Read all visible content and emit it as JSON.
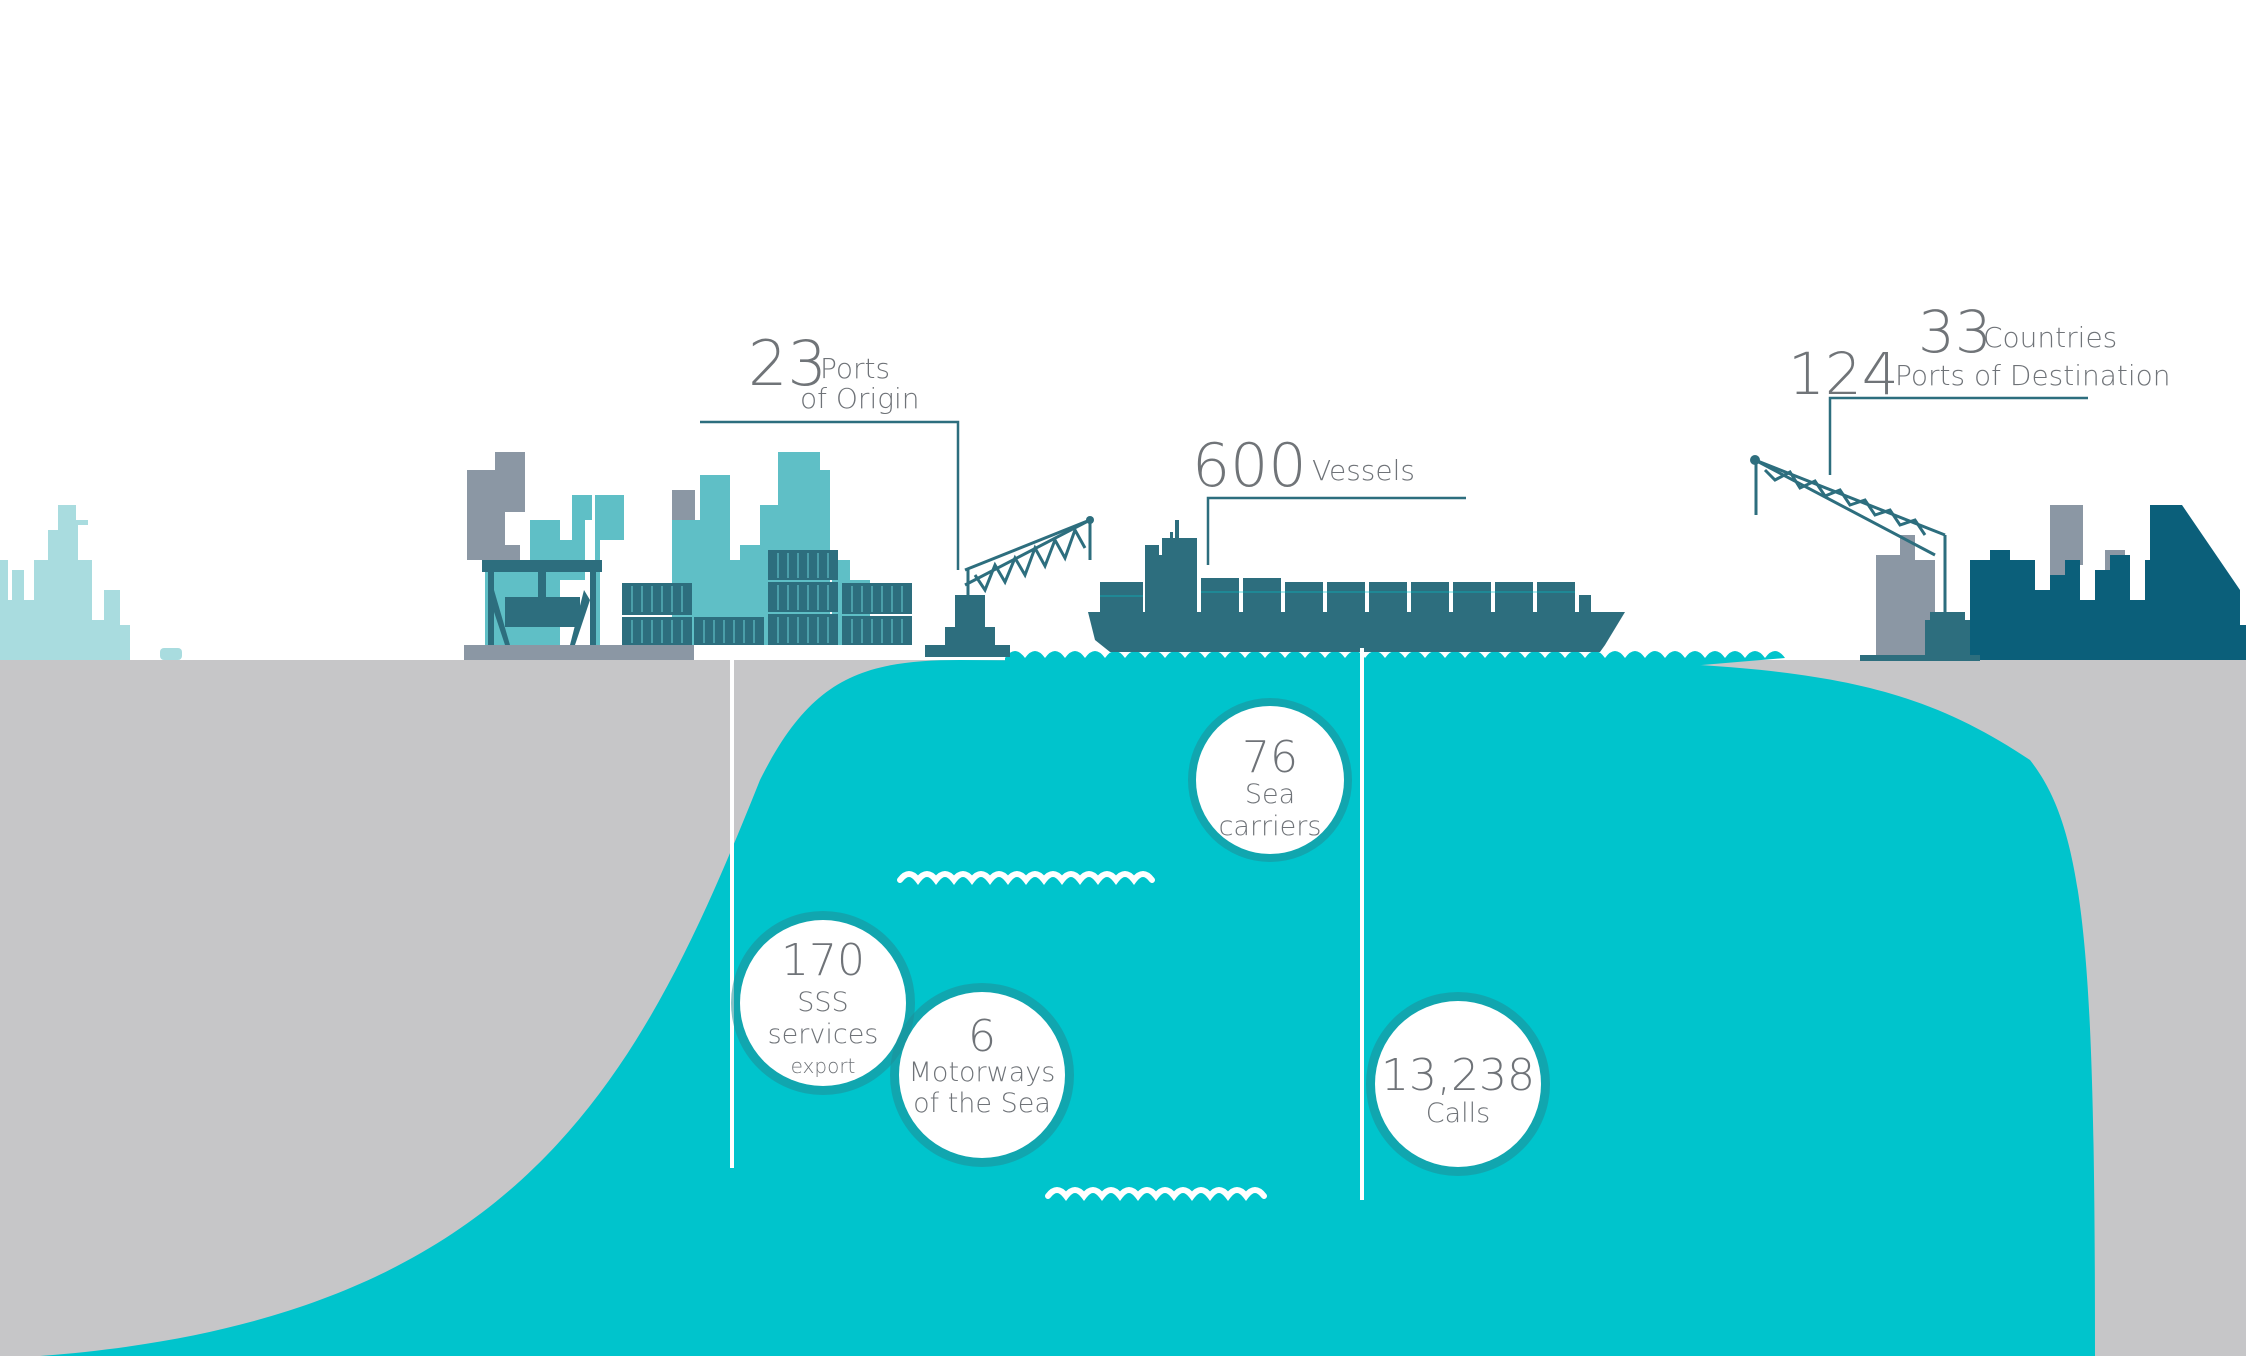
{
  "colors": {
    "ground": "#c6c6c8",
    "sea": "#00c4cc",
    "dark_teal": "#2d6e7e",
    "deep_teal": "#0b5f7a",
    "mid_teal": "#5fbfc6",
    "light_teal": "#a9dcdf",
    "grey_building": "#8b97a4",
    "circle_ring": "#1f8e97",
    "label_line": "#2d6e7e",
    "text": "#6f7378"
  },
  "origin": {
    "number": "23",
    "label_line1": "Ports",
    "label_line2": "of Origin"
  },
  "vessels": {
    "number": "600",
    "label": "Vessels"
  },
  "destination": {
    "countries_number": "33",
    "countries_label": "Countries",
    "ports_number": "124",
    "ports_label": "Ports of Destination"
  },
  "stats": {
    "sea_carriers": {
      "number": "76",
      "line1": "Sea",
      "line2": "carriers"
    },
    "sss_services": {
      "number": "170",
      "line1": "SSS",
      "line2": "services",
      "line3": "export"
    },
    "motorways": {
      "number": "6",
      "line1": "Motorways",
      "line2": "of the Sea"
    },
    "calls": {
      "number": "13,238",
      "line1": "Calls"
    }
  },
  "icons": {
    "city_left": "city-skyline-icon",
    "container_terminal": "container-terminal-icon",
    "port_crane": "port-crane-icon",
    "container_ship": "container-ship-icon",
    "city_right": "destination-port-icon"
  }
}
